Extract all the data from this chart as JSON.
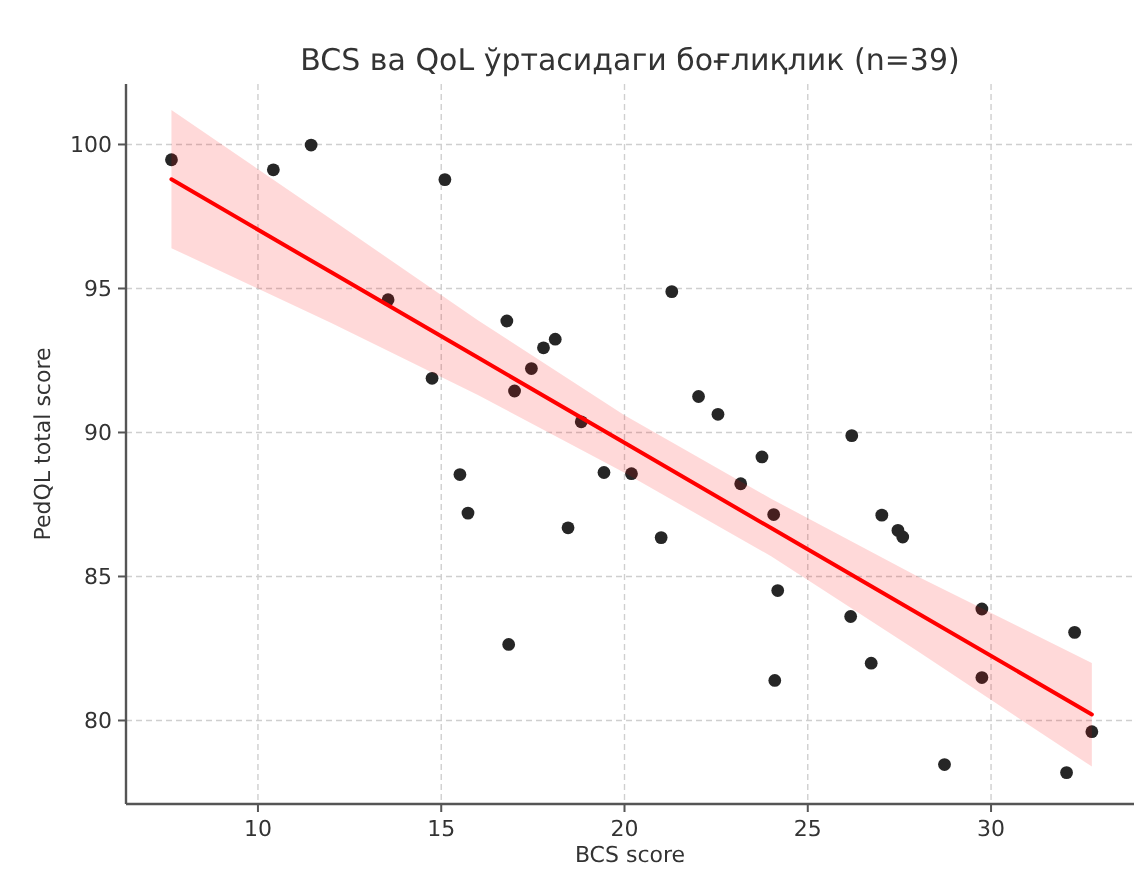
{
  "chart_data": {
    "type": "scatter",
    "title": "BCS ва QoL ўртасидаги боғлиқлик (n=39)",
    "xlabel": "BCS score",
    "ylabel": "PedQL total score",
    "xlim": [
      6.4,
      33.9
    ],
    "ylim": [
      77.1,
      102.1
    ],
    "xticks": [
      10,
      15,
      20,
      25,
      30
    ],
    "yticks": [
      80,
      85,
      90,
      95,
      100
    ],
    "grid": true,
    "marker": "circle",
    "series": [
      {
        "color": "#262626",
        "x": [
          7.64,
          10.42,
          11.45,
          15.1,
          13.55,
          16.79,
          14.75,
          18.11,
          17.79,
          17.46,
          17.0,
          18.82,
          15.51,
          19.44,
          20.19,
          21.29,
          22.02,
          22.55,
          26.2,
          23.75,
          23.17,
          15.73,
          18.46,
          16.84,
          21.0,
          24.07,
          27.02,
          27.46,
          27.59,
          24.18,
          26.17,
          29.75,
          32.28,
          26.73,
          24.1,
          29.75,
          32.75,
          28.73,
          32.06
        ],
        "values": [
          99.47,
          99.12,
          99.98,
          98.78,
          94.61,
          93.87,
          91.88,
          93.24,
          92.94,
          92.22,
          91.44,
          90.37,
          88.54,
          88.61,
          88.57,
          94.89,
          91.25,
          90.63,
          89.89,
          89.15,
          88.22,
          87.2,
          86.69,
          82.64,
          86.35,
          87.15,
          87.13,
          86.6,
          86.37,
          84.51,
          83.61,
          83.87,
          83.06,
          81.99,
          81.39,
          81.49,
          79.61,
          78.47,
          78.19
        ]
      },
      {
        "type": "line",
        "color": "#ff0000",
        "marker": "none",
        "line_style": "solid",
        "x": [
          7.64,
          12,
          16,
          20,
          24,
          28,
          32.75
        ],
        "values": [
          98.79,
          95.56,
          92.6,
          89.64,
          86.68,
          83.72,
          80.21
        ],
        "lower": [
          96.4,
          93.8,
          91.3,
          88.6,
          85.7,
          82.4,
          78.4
        ],
        "upper": [
          101.2,
          97.4,
          93.9,
          90.6,
          87.7,
          85.0,
          82.0
        ]
      }
    ]
  }
}
